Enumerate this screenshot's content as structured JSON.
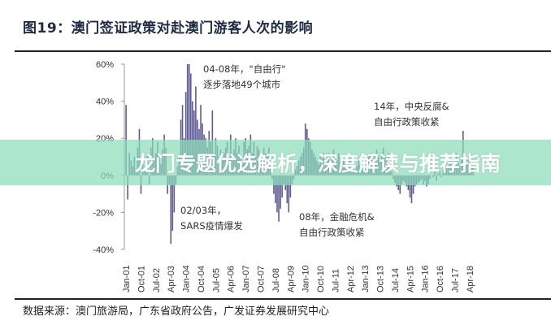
{
  "title": "图19：澳门签证政策对赴澳门游客人次的影响",
  "source": "数据来源：澳门旅游局，广东省政府公告，广发证券发展研究中心",
  "banner": "龙门专题优选解析，深度解读与推荐指南",
  "annotations": {
    "a1": {
      "line1": "04-08年，\"自由行\"",
      "line2": "逐步落地49个城市"
    },
    "a2": {
      "line1": "14年，中央反腐&",
      "line2": "自由行政策收紧"
    },
    "a3": {
      "line1": "02/03年，",
      "line2": "SARS疫情爆发"
    },
    "a4": {
      "line1": "08年，金融危机&",
      "line2": "自由行政策收紧"
    }
  },
  "chart_data": {
    "type": "bar",
    "title": "图19：澳门签证政策对赴澳门游客人次的影响",
    "xlabel": "",
    "ylabel": "",
    "ylim": [
      -40,
      60
    ],
    "yticks": [
      "60%",
      "40%",
      "20%",
      "0%",
      "-20%",
      "-40%"
    ],
    "ytick_values": [
      60,
      40,
      20,
      0,
      -20,
      -40
    ],
    "xticks": [
      "Jan-01",
      "Oct-01",
      "Jul-02",
      "Apr-03",
      "Jan-04",
      "Oct-04",
      "Jul-05",
      "Apr-06",
      "Jan-07",
      "Oct-07",
      "Jul-08",
      "Apr-09",
      "Jan-10",
      "Oct-10",
      "Jul-11",
      "Apr-12",
      "Jan-13",
      "Oct-13",
      "Jul-14",
      "Apr-15",
      "Jan-16",
      "Oct-16",
      "Jul-17",
      "Apr-18"
    ],
    "start": "Jan-01",
    "frequency": "monthly",
    "bar_color": "#5e5a94",
    "grid": false,
    "values": [
      38,
      -13,
      12,
      8,
      5,
      10,
      3,
      15,
      25,
      -10,
      6,
      2,
      10,
      12,
      -5,
      15,
      20,
      8,
      12,
      18,
      10,
      6,
      14,
      22,
      15,
      -10,
      -5,
      -37,
      -30,
      -20,
      -5,
      5,
      10,
      30,
      38,
      20,
      45,
      60,
      60,
      55,
      40,
      35,
      48,
      30,
      25,
      38,
      28,
      22,
      20,
      15,
      24,
      18,
      35,
      12,
      20,
      16,
      10,
      14,
      8,
      12,
      15,
      18,
      10,
      22,
      8,
      14,
      20,
      12,
      16,
      10,
      6,
      18,
      20,
      14,
      16,
      22,
      12,
      18,
      10,
      16,
      14,
      12,
      8,
      15,
      12,
      10,
      15,
      5,
      -2,
      -10,
      -15,
      -20,
      -25,
      -18,
      -12,
      -5,
      -8,
      -15,
      -20,
      -12,
      -5,
      -2,
      3,
      5,
      8,
      10,
      12,
      15,
      28,
      25,
      20,
      18,
      14,
      12,
      10,
      8,
      6,
      10,
      9,
      12,
      8,
      10,
      12,
      7,
      9,
      14,
      11,
      8,
      12,
      10,
      6,
      9,
      5,
      8,
      6,
      10,
      4,
      7,
      2,
      5,
      8,
      6,
      3,
      4,
      6,
      8,
      10,
      12,
      9,
      7,
      11,
      14,
      10,
      8,
      12,
      15,
      10,
      8,
      12,
      5,
      2,
      -2,
      -4,
      -6,
      -8,
      -10,
      -5,
      -3,
      -4,
      -6,
      -8,
      -12,
      -15,
      -10,
      -6,
      -5,
      -4,
      -3,
      -2,
      -5,
      -3,
      -6,
      -5,
      -2,
      0,
      -1,
      2,
      -3,
      1,
      2,
      -1,
      3,
      2,
      5,
      4,
      8,
      6,
      10,
      4,
      12,
      7,
      5,
      9,
      24,
      8,
      6,
      10,
      7,
      5,
      4
    ]
  }
}
